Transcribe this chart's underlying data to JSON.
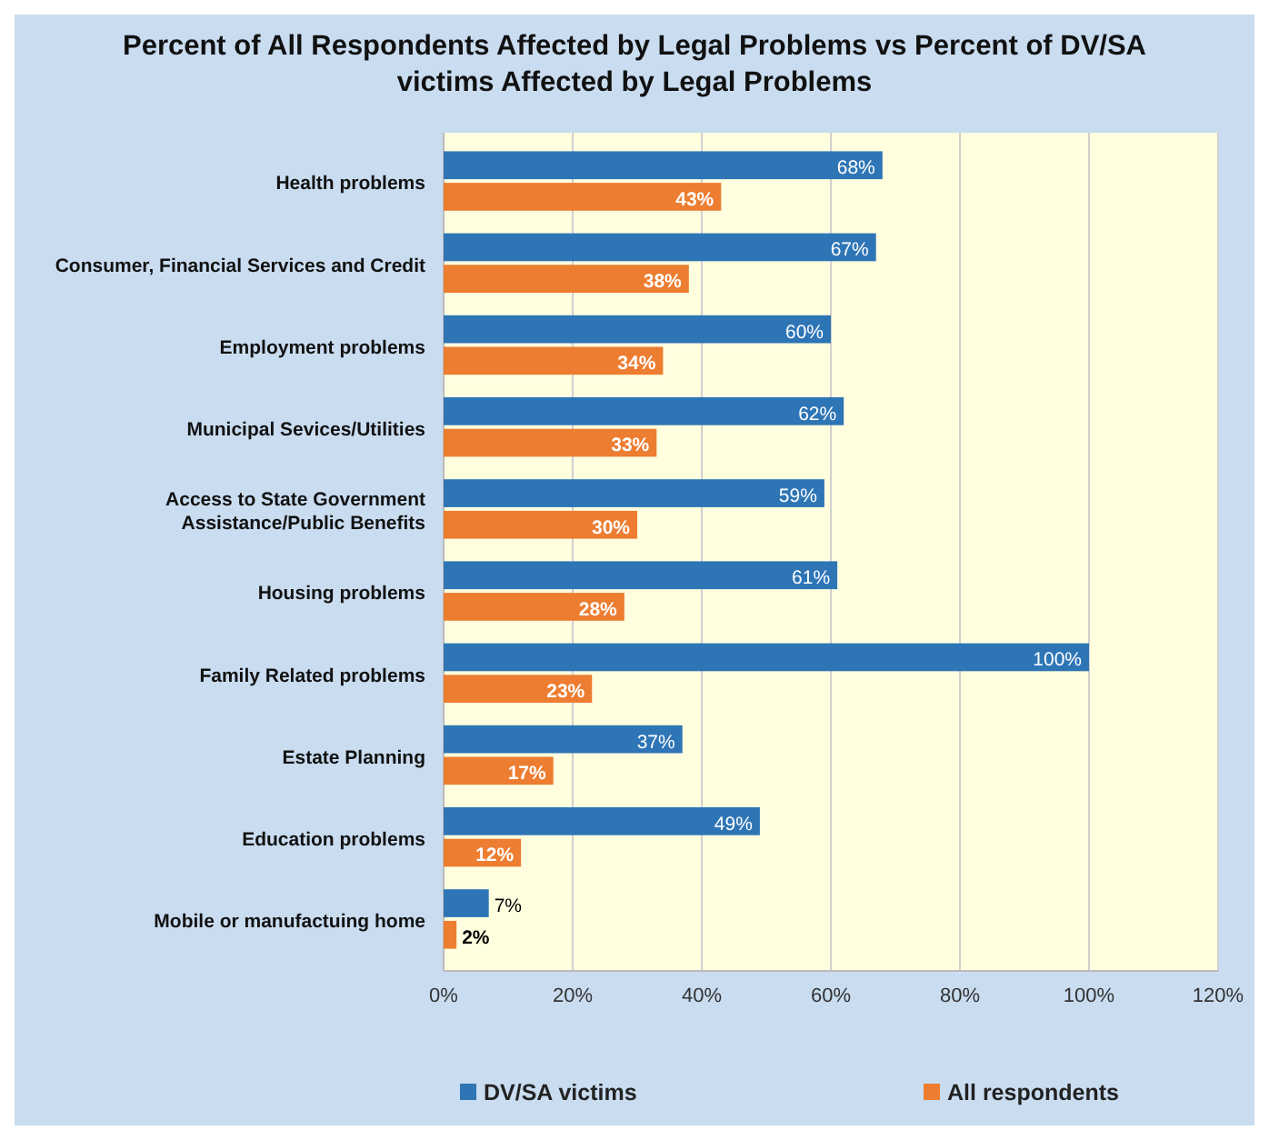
{
  "chart_data": {
    "type": "bar",
    "orientation": "horizontal",
    "title": "Percent of All Respondents Affected by Legal Problems vs Percent of DV/SA victims Affected by Legal Problems",
    "categories": [
      "Health problems",
      "Consumer, Financial Services and Credit",
      "Employment problems",
      "Municipal Sevices/Utilities",
      "Access to State Government Assistance/Public Benefits",
      "Housing problems",
      "Family Related problems",
      "Estate Planning",
      "Education problems",
      "Mobile or manufactuing home"
    ],
    "series": [
      {
        "name": "DV/SA victims",
        "color": "#2e75b6",
        "values": [
          68,
          67,
          60,
          62,
          59,
          61,
          100,
          37,
          49,
          7
        ],
        "value_labels": [
          "68%",
          "67%",
          "60%",
          "62%",
          "59%",
          "61%",
          "100%",
          "37%",
          "49%",
          "7%"
        ]
      },
      {
        "name": "All respondents",
        "color": "#ed7d31",
        "values": [
          43,
          38,
          34,
          33,
          30,
          28,
          23,
          17,
          12,
          2
        ],
        "value_labels": [
          "43%",
          "38%",
          "34%",
          "33%",
          "30%",
          "28%",
          "23%",
          "17%",
          "12%",
          "2%"
        ]
      }
    ],
    "xlim": [
      0,
      120
    ],
    "xticks": [
      {
        "value": 0,
        "label": "0%"
      },
      {
        "value": 20,
        "label": "20%"
      },
      {
        "value": 40,
        "label": "40%"
      },
      {
        "value": 60,
        "label": "60%"
      },
      {
        "value": 80,
        "label": "80%"
      },
      {
        "value": 100,
        "label": "100%"
      },
      {
        "value": 120,
        "label": "120%"
      }
    ],
    "grid": "x",
    "legend": "bottom"
  }
}
